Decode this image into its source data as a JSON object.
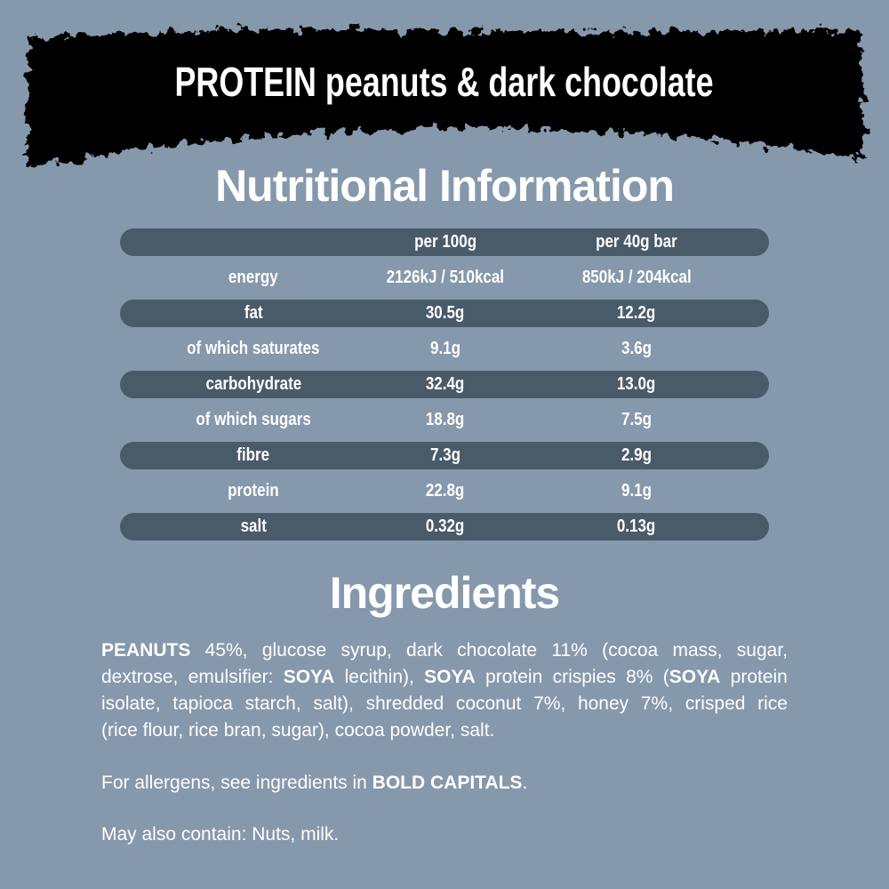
{
  "colors": {
    "background": "#8598ac",
    "banner": "#060606",
    "pill": "#495a69",
    "text": "#ffffff"
  },
  "banner": {
    "title": "PROTEIN peanuts & dark chocolate"
  },
  "nutrition": {
    "title": "Nutritional Information",
    "columns": [
      "per 100g",
      "per 40g bar"
    ],
    "rows": [
      {
        "label": "energy",
        "per_100g": "2126kJ / 510kcal",
        "per_40g_bar": "850kJ / 204kcal",
        "pill": false
      },
      {
        "label": "fat",
        "per_100g": "30.5g",
        "per_40g_bar": "12.2g",
        "pill": true
      },
      {
        "label": "of which saturates",
        "per_100g": "9.1g",
        "per_40g_bar": "3.6g",
        "pill": false
      },
      {
        "label": "carbohydrate",
        "per_100g": "32.4g",
        "per_40g_bar": "13.0g",
        "pill": true
      },
      {
        "label": "of which sugars",
        "per_100g": "18.8g",
        "per_40g_bar": "7.5g",
        "pill": false
      },
      {
        "label": "fibre",
        "per_100g": "7.3g",
        "per_40g_bar": "2.9g",
        "pill": true
      },
      {
        "label": "protein",
        "per_100g": "22.8g",
        "per_40g_bar": "9.1g",
        "pill": false
      },
      {
        "label": "salt",
        "per_100g": "0.32g",
        "per_40g_bar": "0.13g",
        "pill": true
      }
    ]
  },
  "ingredients": {
    "title": "Ingredients",
    "lines": [
      {
        "justify": true,
        "segments": [
          {
            "text": "PEANUTS",
            "bold": true
          },
          {
            "text": " 45%, glucose syrup, dark chocolate 11% (cocoa mass, sugar,",
            "bold": false
          }
        ]
      },
      {
        "justify": true,
        "segments": [
          {
            "text": "dextrose, emulsifier: ",
            "bold": false
          },
          {
            "text": "SOYA",
            "bold": true
          },
          {
            "text": " lecithin), ",
            "bold": false
          },
          {
            "text": "SOYA",
            "bold": true
          },
          {
            "text": " protein crispies 8% (",
            "bold": false
          },
          {
            "text": "SOYA",
            "bold": true
          },
          {
            "text": " protein",
            "bold": false
          }
        ]
      },
      {
        "justify": true,
        "segments": [
          {
            "text": "isolate, tapioca starch, salt), shredded coconut 7%, honey 7%, crisped rice",
            "bold": false
          }
        ]
      },
      {
        "justify": false,
        "segments": [
          {
            "text": "(rice flour, rice bran, sugar), cocoa powder, salt.",
            "bold": false
          }
        ]
      }
    ],
    "allergen_note": {
      "segments": [
        {
          "text": "For allergens, see ingredients in ",
          "bold": false
        },
        {
          "text": "BOLD CAPITALS",
          "bold": true
        },
        {
          "text": ".",
          "bold": false
        }
      ]
    },
    "may_contain": "May also contain: Nuts, milk."
  }
}
